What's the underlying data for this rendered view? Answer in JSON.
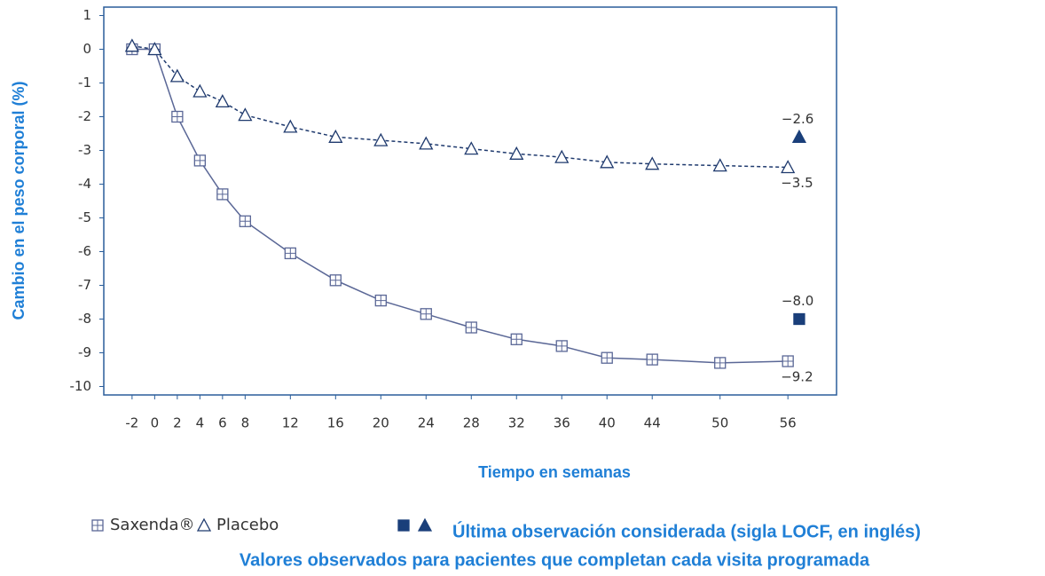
{
  "chart_data": {
    "type": "line",
    "ylabel": "Cambio en el peso corporal (%)",
    "xlabel": "Tiempo en semanas",
    "x": [
      -2,
      0,
      2,
      4,
      6,
      8,
      12,
      16,
      20,
      24,
      28,
      32,
      36,
      40,
      44,
      50,
      56
    ],
    "series": [
      {
        "name": "Saxenda®",
        "color": "#5a6796",
        "marker": "square",
        "dash": false,
        "values": [
          0,
          0,
          -2.0,
          -3.3,
          -4.3,
          -5.1,
          -6.05,
          -6.85,
          -7.45,
          -7.85,
          -8.25,
          -8.6,
          -8.8,
          -9.15,
          -9.2,
          -9.3,
          -9.25
        ],
        "end_label": "−9.2"
      },
      {
        "name": "Placebo",
        "color": "#1f3a6e",
        "marker": "triangle",
        "dash": true,
        "values": [
          0.1,
          0,
          -0.8,
          -1.25,
          -1.55,
          -1.95,
          -2.3,
          -2.6,
          -2.7,
          -2.8,
          -2.95,
          -3.1,
          -3.2,
          -3.35,
          -3.4,
          -3.45,
          -3.5
        ],
        "end_label": "−3.5"
      }
    ],
    "locf": {
      "label": "Última observación considerada (sigla LOCF, en inglés)",
      "color": "#1a3f7a",
      "x": 57,
      "series": [
        {
          "marker": "square",
          "values": [
            -8.0
          ],
          "value_labels": [
            "−8.0"
          ]
        },
        {
          "marker": "triangle",
          "values": [
            -2.6
          ],
          "value_labels": [
            "−2.6"
          ]
        }
      ]
    },
    "note": "Valores observados para pacientes que completan cada visita programada",
    "xlim": [
      -4.5,
      60.3
    ],
    "xticks": [
      -2,
      0,
      2,
      4,
      6,
      8,
      12,
      16,
      20,
      24,
      28,
      32,
      36,
      40,
      44,
      50,
      56
    ],
    "ylim": [
      -10.25,
      1.25
    ],
    "yticks": [
      1,
      0,
      -1,
      -2,
      -3,
      -4,
      -5,
      -6,
      -7,
      -8,
      -9,
      -10
    ],
    "grid": false
  }
}
